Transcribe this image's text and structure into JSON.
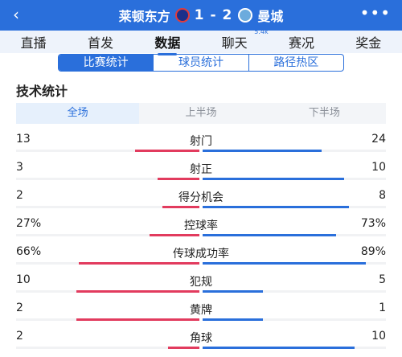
{
  "header": {
    "back_icon": "‹",
    "home_team": "莱顿东方",
    "away_team": "曼城",
    "home_score": "1",
    "separator": "-",
    "away_score": "2",
    "more_icon": "•••",
    "bg_color": "#2a6fdb"
  },
  "tabs": [
    {
      "label": "直播"
    },
    {
      "label": "首发"
    },
    {
      "label": "数据",
      "active": true
    },
    {
      "label": "聊天",
      "badge": "5.4k"
    },
    {
      "label": "赛况"
    },
    {
      "label": "奖金"
    }
  ],
  "segments": [
    {
      "label": "比赛统计",
      "active": true
    },
    {
      "label": "球员统计"
    },
    {
      "label": "路径热区"
    }
  ],
  "section_title": "技术统计",
  "periods": [
    {
      "label": "全场",
      "active": true
    },
    {
      "label": "上半场"
    },
    {
      "label": "下半场"
    }
  ],
  "stats": [
    {
      "label": "射门",
      "home": "13",
      "away": "24",
      "home_bar": 0.35,
      "away_bar": 0.65
    },
    {
      "label": "射正",
      "home": "3",
      "away": "10",
      "home_bar": 0.23,
      "away_bar": 0.77
    },
    {
      "label": "得分机会",
      "home": "2",
      "away": "8",
      "home_bar": 0.2,
      "away_bar": 0.8
    },
    {
      "label": "控球率",
      "home": "27%",
      "away": "73%",
      "home_bar": 0.27,
      "away_bar": 0.73
    },
    {
      "label": "传球成功率",
      "home": "66%",
      "away": "89%",
      "home_bar": 0.66,
      "away_bar": 0.89
    },
    {
      "label": "犯规",
      "home": "10",
      "away": "5",
      "home_bar": 0.67,
      "away_bar": 0.33
    },
    {
      "label": "黄牌",
      "home": "2",
      "away": "1",
      "home_bar": 0.67,
      "away_bar": 0.33
    },
    {
      "label": "角球",
      "home": "2",
      "away": "10",
      "home_bar": 0.17,
      "away_bar": 0.83
    }
  ],
  "colors": {
    "accent": "#2a6fdb",
    "home_bar": "#e23b5e",
    "away_bar": "#2a6fdb"
  }
}
